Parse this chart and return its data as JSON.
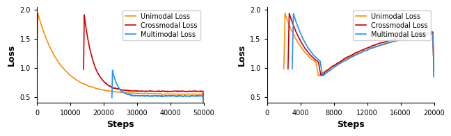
{
  "left": {
    "xlabel": "Steps",
    "ylabel": "Loss",
    "xlim": [
      0,
      50000
    ],
    "ylim": [
      0.4,
      2.05
    ],
    "yticks": [
      0.5,
      1.0,
      1.5,
      2.0
    ],
    "xticks": [
      0,
      10000,
      20000,
      30000,
      40000,
      50000
    ],
    "xtick_labels": [
      "0",
      "10000",
      "20000",
      "30000",
      "40000",
      "50000"
    ],
    "unimodal_color": "#FF8C00",
    "crossmodal_color": "#CC0000",
    "multimodal_color": "#1E90FF"
  },
  "right": {
    "xlabel": "Steps",
    "ylabel": "Loss",
    "xlim": [
      0,
      20000
    ],
    "ylim": [
      0.4,
      2.05
    ],
    "yticks": [
      0.5,
      1.0,
      1.5,
      2.0
    ],
    "xticks": [
      0,
      4000,
      8000,
      12000,
      16000,
      20000
    ],
    "xtick_labels": [
      "0",
      "4000",
      "8000",
      "12000",
      "16000",
      "20000"
    ],
    "unimodal_color": "#FF8C00",
    "crossmodal_color": "#CC0000",
    "multimodal_color": "#1E90FF"
  },
  "legend_labels": [
    "Unimodal Loss",
    "Crossmodal Loss",
    "Multimodal Loss"
  ],
  "font_size": 8,
  "label_fontsize": 9,
  "linewidth": 1.2
}
